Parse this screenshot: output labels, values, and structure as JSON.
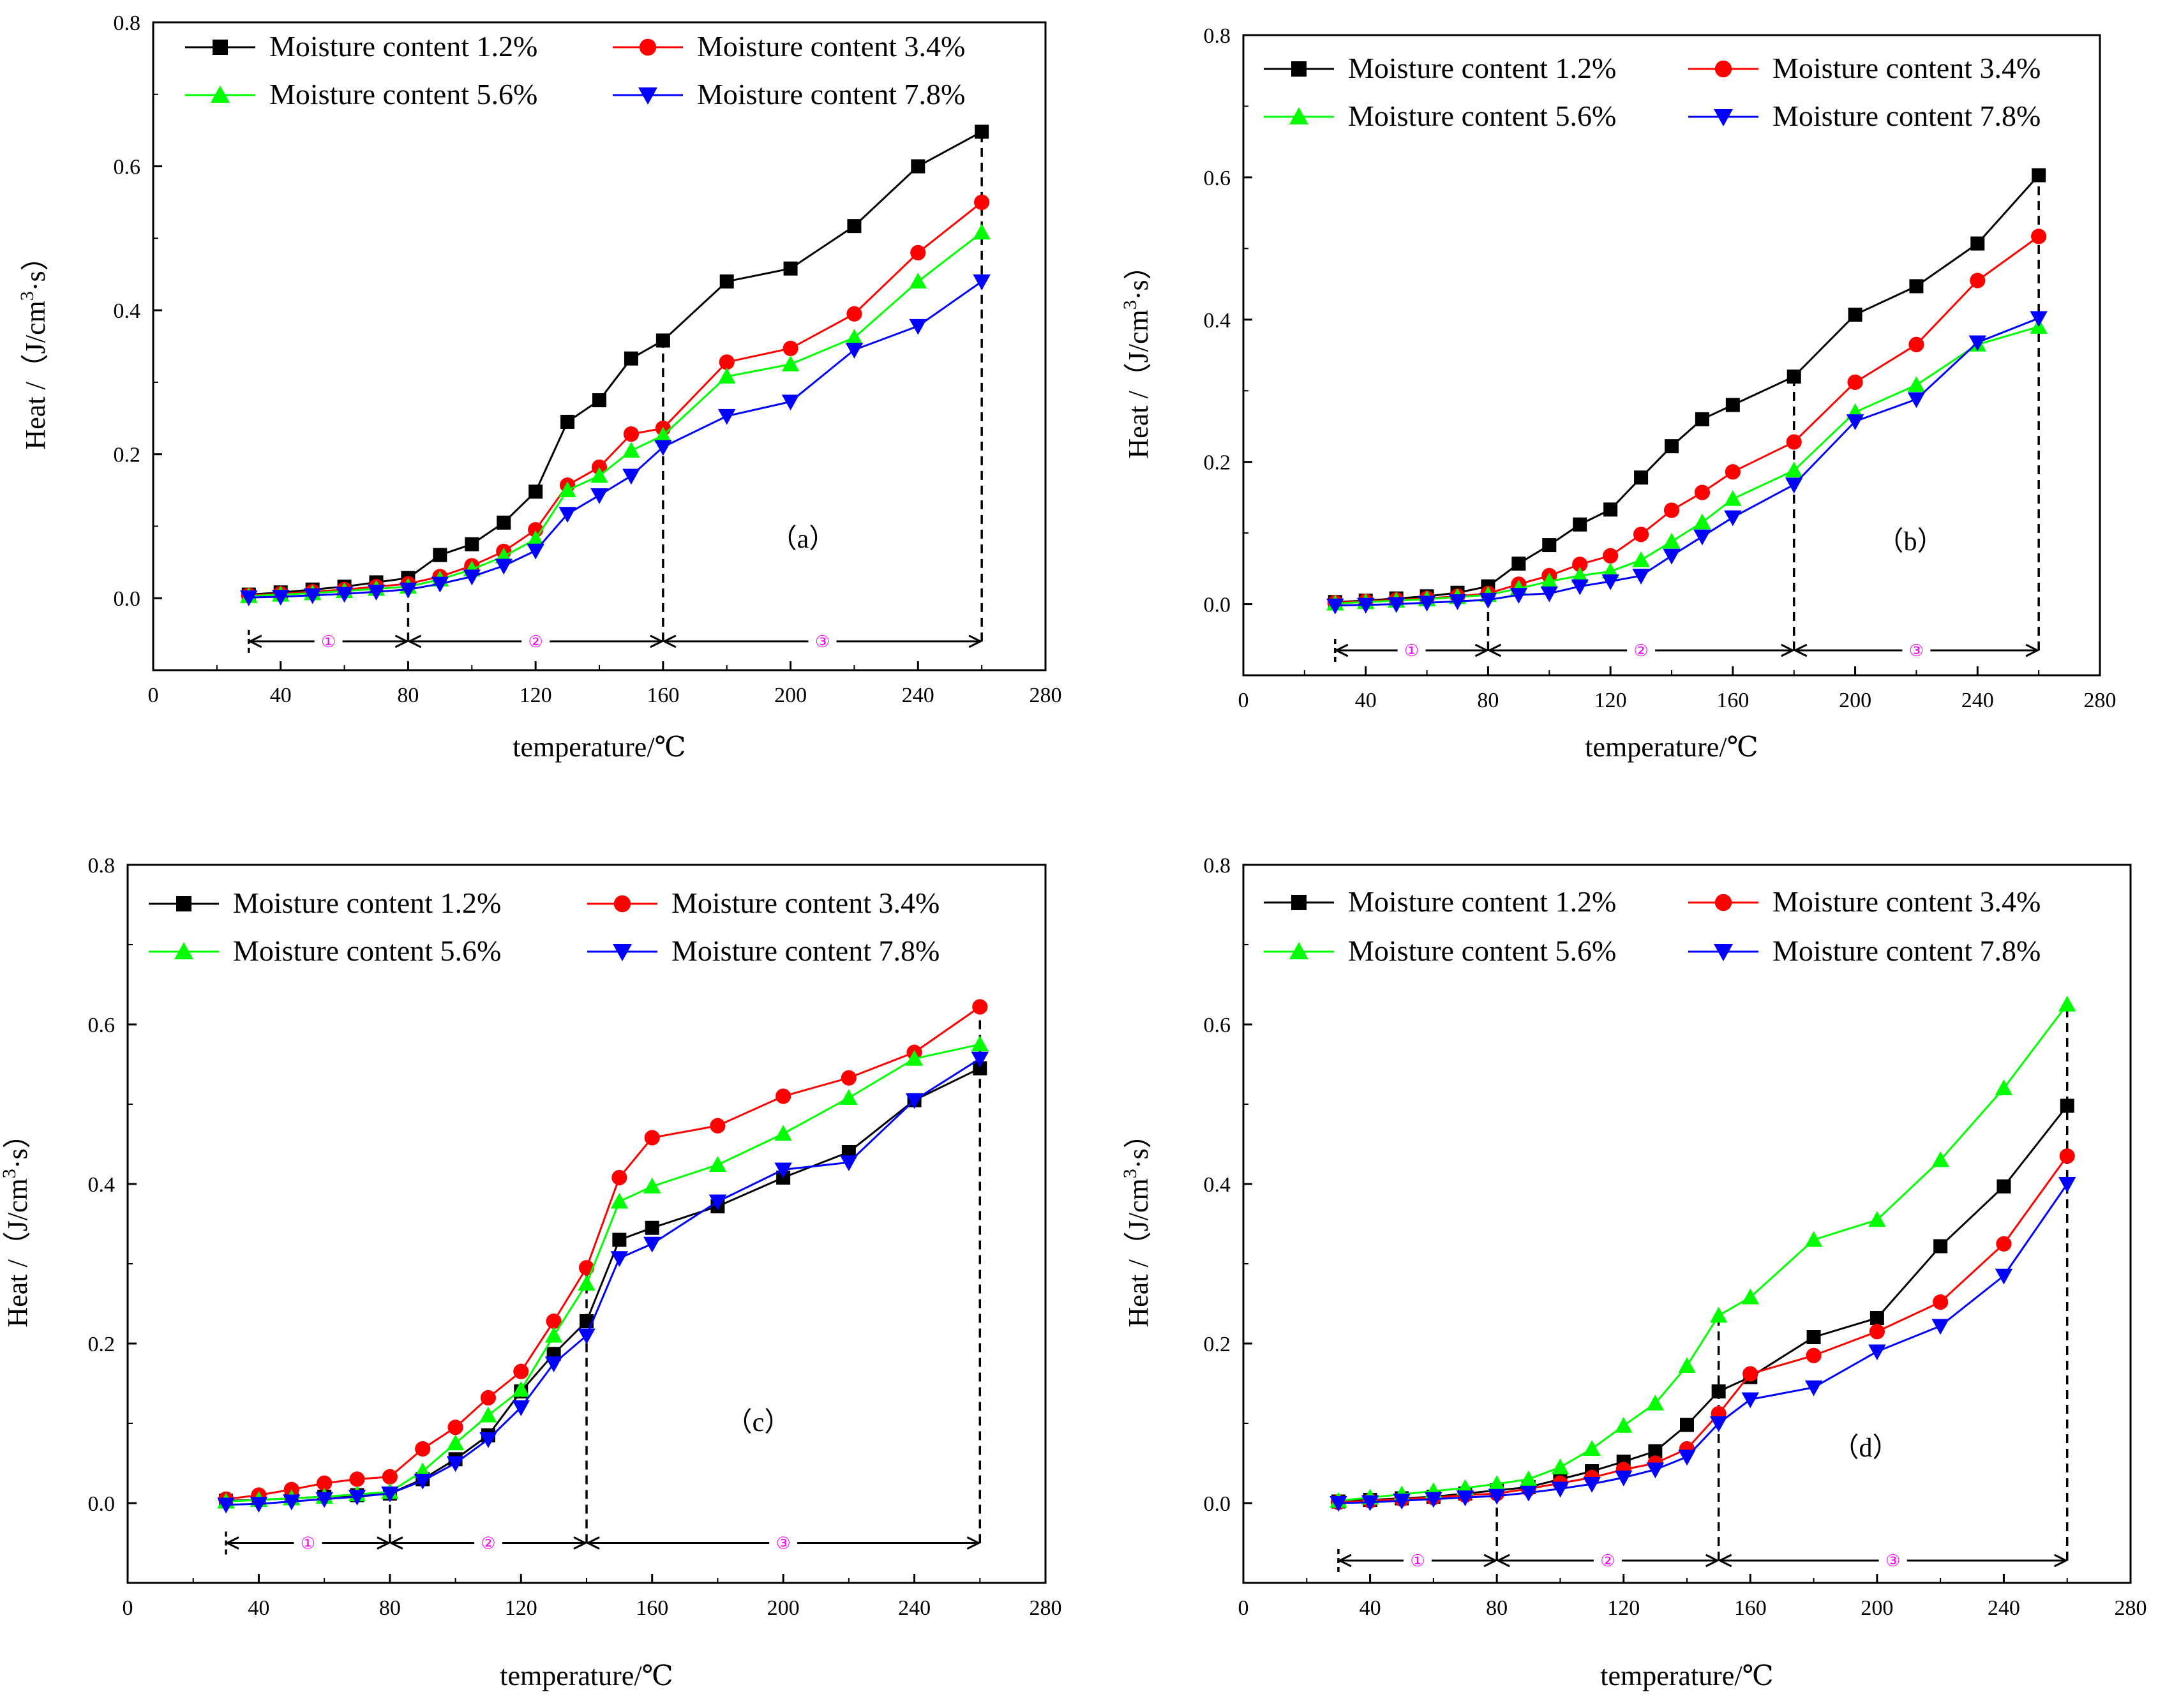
{
  "chart_data": [
    {
      "panel": "(a)",
      "type": "line",
      "title": "",
      "xlabel": "temperature/℃",
      "ylabel": "Heat /（J/cm³·s）",
      "ylabel_parts": {
        "pre": "Heat /（J/cm",
        "sup": "3",
        "post": "·s）"
      },
      "panel_label": "（a）",
      "xlim": [
        0,
        280
      ],
      "ylim": [
        -0.1,
        0.8
      ],
      "x_ticks": [
        0,
        40,
        80,
        120,
        160,
        200,
        240,
        280
      ],
      "y_ticks": [
        0.0,
        0.2,
        0.4,
        0.6,
        0.8
      ],
      "x_tick_labels": [
        "0",
        "40",
        "80",
        "120",
        "160",
        "200",
        "240",
        "280"
      ],
      "y_tick_labels": [
        "0.0",
        "0.2",
        "0.4",
        "0.6",
        "0.8"
      ],
      "stage_boundaries": [
        30,
        80,
        160,
        260
      ],
      "stage_labels": [
        "①",
        "②",
        "③"
      ],
      "arrow_y": -0.06,
      "series": [
        {
          "name": "Moisture content 1.2%",
          "color": "#000000",
          "marker": "square",
          "x": [
            30,
            40,
            50,
            60,
            70,
            80,
            90,
            100,
            110,
            120,
            130,
            140,
            150,
            160,
            180,
            200,
            220,
            240,
            260
          ],
          "y": [
            0.005,
            0.008,
            0.012,
            0.016,
            0.022,
            0.028,
            0.06,
            0.075,
            0.105,
            0.148,
            0.245,
            0.275,
            0.333,
            0.358,
            0.44,
            0.458,
            0.517,
            0.6,
            0.648
          ]
        },
        {
          "name": "Moisture content 3.4%",
          "color": "#ff0000",
          "marker": "circle",
          "x": [
            30,
            40,
            50,
            60,
            70,
            80,
            90,
            100,
            110,
            120,
            130,
            140,
            150,
            160,
            180,
            200,
            220,
            240,
            260
          ],
          "y": [
            0.004,
            0.006,
            0.009,
            0.012,
            0.016,
            0.02,
            0.03,
            0.045,
            0.065,
            0.095,
            0.157,
            0.182,
            0.228,
            0.236,
            0.328,
            0.347,
            0.395,
            0.48,
            0.55
          ]
        },
        {
          "name": "Moisture content 5.6%",
          "color": "#00ff00",
          "marker": "triangle-up",
          "x": [
            30,
            40,
            50,
            60,
            70,
            80,
            90,
            100,
            110,
            120,
            130,
            140,
            150,
            160,
            180,
            200,
            220,
            240,
            260
          ],
          "y": [
            0.003,
            0.005,
            0.007,
            0.01,
            0.013,
            0.016,
            0.026,
            0.04,
            0.058,
            0.082,
            0.15,
            0.17,
            0.205,
            0.226,
            0.308,
            0.325,
            0.362,
            0.44,
            0.508
          ]
        },
        {
          "name": "Moisture content 7.8%",
          "color": "#0000ff",
          "marker": "triangle-down",
          "x": [
            30,
            40,
            50,
            60,
            70,
            80,
            90,
            100,
            110,
            120,
            130,
            140,
            150,
            160,
            180,
            200,
            220,
            240,
            260
          ],
          "y": [
            0.001,
            0.002,
            0.004,
            0.006,
            0.009,
            0.012,
            0.02,
            0.03,
            0.045,
            0.066,
            0.117,
            0.143,
            0.17,
            0.21,
            0.253,
            0.273,
            0.345,
            0.378,
            0.44
          ]
        }
      ]
    },
    {
      "panel": "(b)",
      "type": "line",
      "title": "",
      "xlabel": "temperature/℃",
      "ylabel": "Heat /（J/cm³·s）",
      "ylabel_parts": {
        "pre": "Heat /（J/cm",
        "sup": "3",
        "post": "·s）"
      },
      "panel_label": "（b）",
      "xlim": [
        0,
        280
      ],
      "ylim": [
        -0.1,
        0.8
      ],
      "x_ticks": [
        0,
        40,
        80,
        120,
        160,
        200,
        240,
        280
      ],
      "y_ticks": [
        0.0,
        0.2,
        0.4,
        0.6,
        0.8
      ],
      "x_tick_labels": [
        "0",
        "40",
        "80",
        "120",
        "160",
        "200",
        "240",
        "280"
      ],
      "y_tick_labels": [
        "0.0",
        "0.2",
        "0.4",
        "0.6",
        "0.8"
      ],
      "stage_boundaries": [
        30,
        80,
        180,
        260
      ],
      "stage_labels": [
        "①",
        "②",
        "③"
      ],
      "arrow_y": -0.065,
      "series": [
        {
          "name": "Moisture content 1.2%",
          "color": "#000000",
          "marker": "square",
          "x": [
            30,
            40,
            50,
            60,
            70,
            80,
            90,
            100,
            110,
            120,
            130,
            140,
            150,
            160,
            180,
            200,
            220,
            240,
            260
          ],
          "y": [
            0.003,
            0.005,
            0.008,
            0.011,
            0.016,
            0.025,
            0.057,
            0.083,
            0.112,
            0.133,
            0.178,
            0.222,
            0.26,
            0.28,
            0.32,
            0.407,
            0.447,
            0.507,
            0.603
          ]
        },
        {
          "name": "Moisture content 3.4%",
          "color": "#ff0000",
          "marker": "circle",
          "x": [
            30,
            40,
            50,
            60,
            70,
            80,
            90,
            100,
            110,
            120,
            130,
            140,
            150,
            160,
            180,
            200,
            220,
            240,
            260
          ],
          "y": [
            0.002,
            0.004,
            0.006,
            0.008,
            0.011,
            0.015,
            0.028,
            0.04,
            0.056,
            0.068,
            0.098,
            0.132,
            0.157,
            0.186,
            0.228,
            0.312,
            0.365,
            0.455,
            0.517
          ]
        },
        {
          "name": "Moisture content 5.6%",
          "color": "#00ff00",
          "marker": "triangle-up",
          "x": [
            30,
            40,
            50,
            60,
            70,
            80,
            90,
            100,
            110,
            120,
            130,
            140,
            150,
            160,
            180,
            200,
            220,
            240,
            260
          ],
          "y": [
            0.001,
            0.003,
            0.005,
            0.007,
            0.01,
            0.013,
            0.022,
            0.032,
            0.04,
            0.046,
            0.062,
            0.088,
            0.115,
            0.148,
            0.188,
            0.27,
            0.308,
            0.365,
            0.39
          ]
        },
        {
          "name": "Moisture content 7.8%",
          "color": "#0000ff",
          "marker": "triangle-down",
          "x": [
            30,
            40,
            50,
            60,
            70,
            80,
            90,
            100,
            110,
            120,
            130,
            140,
            150,
            160,
            180,
            200,
            220,
            240,
            260
          ],
          "y": [
            -0.002,
            -0.001,
            0.0,
            0.002,
            0.004,
            0.006,
            0.013,
            0.015,
            0.025,
            0.032,
            0.04,
            0.068,
            0.095,
            0.122,
            0.168,
            0.257,
            0.288,
            0.368,
            0.402
          ]
        }
      ]
    },
    {
      "panel": "(c)",
      "type": "line",
      "title": "",
      "xlabel": "temperature/℃",
      "ylabel": "Heat /（J/cm³·s）",
      "ylabel_parts": {
        "pre": "Heat /（J/cm",
        "sup": "3",
        "post": "·s）"
      },
      "panel_label": "（c）",
      "xlim": [
        0,
        280
      ],
      "ylim": [
        -0.1,
        0.8
      ],
      "x_ticks": [
        0,
        40,
        80,
        120,
        160,
        200,
        240,
        280
      ],
      "y_ticks": [
        0.0,
        0.2,
        0.4,
        0.6,
        0.8
      ],
      "x_tick_labels": [
        "0",
        "40",
        "80",
        "120",
        "160",
        "200",
        "240",
        "280"
      ],
      "y_tick_labels": [
        "0.0",
        "0.2",
        "0.4",
        "0.6",
        "0.8"
      ],
      "stage_boundaries": [
        30,
        80,
        140,
        260
      ],
      "stage_labels": [
        "①",
        "②",
        "③"
      ],
      "arrow_y": -0.05,
      "series": [
        {
          "name": "Moisture content 1.2%",
          "color": "#000000",
          "marker": "square",
          "x": [
            30,
            40,
            50,
            60,
            70,
            80,
            90,
            100,
            110,
            120,
            130,
            140,
            150,
            160,
            180,
            200,
            220,
            240,
            260
          ],
          "y": [
            0.003,
            0.004,
            0.006,
            0.008,
            0.01,
            0.012,
            0.03,
            0.055,
            0.085,
            0.14,
            0.187,
            0.228,
            0.33,
            0.345,
            0.372,
            0.408,
            0.44,
            0.505,
            0.545
          ]
        },
        {
          "name": "Moisture content 3.4%",
          "color": "#ff0000",
          "marker": "circle",
          "x": [
            30,
            40,
            50,
            60,
            70,
            80,
            90,
            100,
            110,
            120,
            130,
            140,
            150,
            160,
            180,
            200,
            220,
            240,
            260
          ],
          "y": [
            0.005,
            0.01,
            0.017,
            0.025,
            0.03,
            0.033,
            0.068,
            0.095,
            0.132,
            0.165,
            0.228,
            0.295,
            0.408,
            0.458,
            0.473,
            0.51,
            0.533,
            0.565,
            0.622
          ]
        },
        {
          "name": "Moisture content 5.6%",
          "color": "#00ff00",
          "marker": "triangle-up",
          "x": [
            30,
            40,
            50,
            60,
            70,
            80,
            90,
            100,
            110,
            120,
            130,
            140,
            150,
            160,
            180,
            200,
            220,
            240,
            260
          ],
          "y": [
            0.002,
            0.004,
            0.006,
            0.008,
            0.011,
            0.014,
            0.04,
            0.075,
            0.11,
            0.142,
            0.21,
            0.275,
            0.378,
            0.397,
            0.424,
            0.463,
            0.508,
            0.557,
            0.575
          ]
        },
        {
          "name": "Moisture content 7.8%",
          "color": "#0000ff",
          "marker": "triangle-down",
          "x": [
            30,
            40,
            50,
            60,
            70,
            80,
            90,
            100,
            110,
            120,
            130,
            140,
            150,
            160,
            180,
            200,
            220,
            240,
            260
          ],
          "y": [
            -0.002,
            -0.001,
            0.002,
            0.005,
            0.008,
            0.012,
            0.028,
            0.05,
            0.08,
            0.12,
            0.175,
            0.21,
            0.307,
            0.325,
            0.378,
            0.418,
            0.427,
            0.505,
            0.557
          ]
        }
      ]
    },
    {
      "panel": "(d)",
      "type": "line",
      "title": "",
      "xlabel": "temperature/℃",
      "ylabel": "Heat /（J/cm³·s）",
      "ylabel_parts": {
        "pre": "Heat /（J/cm",
        "sup": "3",
        "post": "·s）"
      },
      "panel_label": "（d）",
      "xlim": [
        0,
        280
      ],
      "ylim": [
        -0.1,
        0.8
      ],
      "x_ticks": [
        0,
        40,
        80,
        120,
        160,
        200,
        240,
        280
      ],
      "y_ticks": [
        0.0,
        0.2,
        0.4,
        0.6,
        0.8
      ],
      "x_tick_labels": [
        "0",
        "40",
        "80",
        "120",
        "160",
        "200",
        "240",
        "280"
      ],
      "y_tick_labels": [
        "0.0",
        "0.2",
        "0.4",
        "0.6",
        "0.8"
      ],
      "stage_boundaries": [
        30,
        80,
        150,
        260
      ],
      "stage_labels": [
        "①",
        "②",
        "③"
      ],
      "arrow_y": -0.072,
      "series": [
        {
          "name": "Moisture content 1.2%",
          "color": "#000000",
          "marker": "square",
          "x": [
            30,
            40,
            50,
            60,
            70,
            80,
            90,
            100,
            110,
            120,
            130,
            140,
            150,
            160,
            180,
            200,
            220,
            240,
            260
          ],
          "y": [
            0.002,
            0.004,
            0.006,
            0.008,
            0.012,
            0.016,
            0.02,
            0.03,
            0.04,
            0.052,
            0.065,
            0.098,
            0.14,
            0.158,
            0.208,
            0.232,
            0.322,
            0.397,
            0.498
          ]
        },
        {
          "name": "Moisture content 3.4%",
          "color": "#ff0000",
          "marker": "circle",
          "x": [
            30,
            40,
            50,
            60,
            70,
            80,
            90,
            100,
            110,
            120,
            130,
            140,
            150,
            160,
            180,
            200,
            220,
            240,
            260
          ],
          "y": [
            0.001,
            0.003,
            0.005,
            0.007,
            0.01,
            0.012,
            0.018,
            0.025,
            0.032,
            0.042,
            0.05,
            0.068,
            0.112,
            0.162,
            0.185,
            0.215,
            0.252,
            0.325,
            0.435
          ]
        },
        {
          "name": "Moisture content 5.6%",
          "color": "#00ff00",
          "marker": "triangle-up",
          "x": [
            30,
            40,
            50,
            60,
            70,
            80,
            90,
            100,
            110,
            120,
            130,
            140,
            150,
            160,
            180,
            200,
            220,
            240,
            260
          ],
          "y": [
            0.003,
            0.007,
            0.011,
            0.015,
            0.019,
            0.024,
            0.03,
            0.045,
            0.068,
            0.097,
            0.125,
            0.172,
            0.235,
            0.258,
            0.33,
            0.355,
            0.43,
            0.52,
            0.625
          ]
        },
        {
          "name": "Moisture content 7.8%",
          "color": "#0000ff",
          "marker": "triangle-down",
          "x": [
            30,
            40,
            50,
            60,
            70,
            80,
            90,
            100,
            110,
            120,
            130,
            140,
            150,
            160,
            180,
            200,
            220,
            240,
            260
          ],
          "y": [
            0.0,
            0.001,
            0.003,
            0.005,
            0.007,
            0.009,
            0.013,
            0.018,
            0.024,
            0.032,
            0.042,
            0.058,
            0.1,
            0.13,
            0.145,
            0.19,
            0.222,
            0.285,
            0.4
          ]
        }
      ]
    }
  ]
}
